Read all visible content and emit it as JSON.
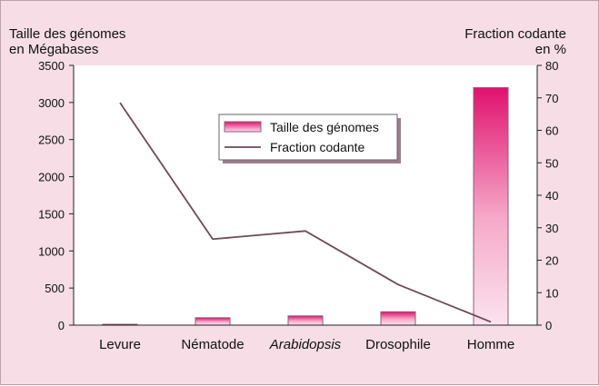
{
  "chart_data": {
    "type": "bar",
    "categories": [
      "Levure",
      "Nématode",
      "Arabidopsis",
      "Drosophile",
      "Homme"
    ],
    "italic_categories": [
      "Arabidopsis"
    ],
    "y_left": {
      "label_lines": [
        "Taille des génomes",
        "en Mégabases"
      ],
      "lim": [
        0,
        3500
      ],
      "ticks": [
        0,
        500,
        1000,
        1500,
        2000,
        2500,
        3000,
        3500
      ]
    },
    "y_right": {
      "label_lines": [
        "Fraction codante",
        "en %"
      ],
      "lim": [
        0,
        80
      ],
      "ticks": [
        0,
        10,
        20,
        30,
        40,
        50,
        60,
        70,
        80
      ]
    },
    "series": [
      {
        "name": "Taille des génomes",
        "kind": "bar",
        "axis": "left",
        "values": [
          12,
          100,
          125,
          180,
          3200
        ]
      },
      {
        "name": "Fraction codante",
        "kind": "line",
        "axis": "right",
        "values": [
          68.5,
          26.5,
          29,
          12.5,
          1
        ]
      }
    ],
    "legend_position": "top-center",
    "grid": false
  },
  "colors": {
    "background": "#f6dde6",
    "plot_area": "#ffffff",
    "bar_top": "#e0126e",
    "bar_bottom": "#fbe3ee",
    "line": "#6e4a57",
    "legend_shadow": "#9a7f8b"
  }
}
